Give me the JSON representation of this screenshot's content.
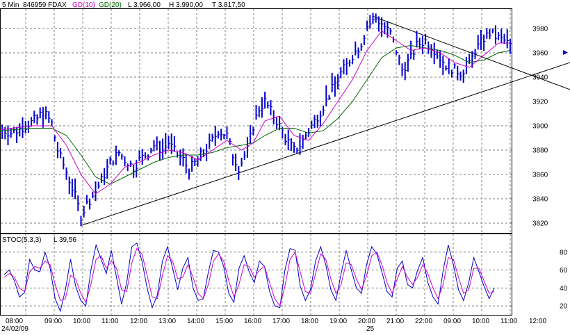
{
  "header": {
    "interval": "5 Min",
    "id": "846959",
    "symbol": "FDAX",
    "ma10_label": "GD(10)",
    "ma20_label": "GD(20)",
    "low": "L  3.966,00",
    "high": "H  3.990,00",
    "last": "T  3.817,50"
  },
  "stoch_header": {
    "label": "STOC(5,3,3)",
    "value": "L  39,56"
  },
  "date_labels": {
    "start": "24/02/09",
    "next_day": "25"
  },
  "colors": {
    "price_bars": "#0000cc",
    "ma10": "#cc00cc",
    "ma20": "#006600",
    "grid": "#7f7f7f",
    "trendlines": "#000000",
    "stoch_k": "#0000cc",
    "stoch_d": "#cc00cc",
    "marker": "#0000cc"
  },
  "chart_data": [
    {
      "type": "ohlc",
      "title": "",
      "price_scale": {
        "ylim": [
          3812,
          3996
        ],
        "ticks": [
          3820,
          3840,
          3860,
          3880,
          3900,
          3920,
          3940,
          3960,
          3980
        ]
      },
      "time_labels": [
        "08:00",
        "09:00",
        "10:00",
        "11:00",
        "12:00",
        "13:00",
        "14:00",
        "15:00",
        "16:00",
        "17:00",
        "18:00",
        "19:00",
        "20:00",
        "21:00",
        "22:00",
        "09:00",
        "10:00",
        "11:00",
        "12:00"
      ],
      "price_path": [
        [
          0,
          3897
        ],
        [
          3,
          3894
        ],
        [
          8,
          3900
        ],
        [
          12,
          3906
        ],
        [
          14,
          3912
        ],
        [
          17,
          3902
        ],
        [
          19,
          3880
        ],
        [
          22,
          3862
        ],
        [
          25,
          3842
        ],
        [
          27,
          3826
        ],
        [
          29,
          3836
        ],
        [
          32,
          3846
        ],
        [
          35,
          3860
        ],
        [
          37,
          3870
        ],
        [
          40,
          3878
        ],
        [
          42,
          3872
        ],
        [
          45,
          3866
        ],
        [
          47,
          3872
        ],
        [
          50,
          3878
        ],
        [
          52,
          3884
        ],
        [
          55,
          3880
        ],
        [
          57,
          3886
        ],
        [
          60,
          3876
        ],
        [
          62,
          3872
        ],
        [
          64,
          3864
        ],
        [
          67,
          3872
        ],
        [
          69,
          3878
        ],
        [
          72,
          3888
        ],
        [
          74,
          3896
        ],
        [
          77,
          3892
        ],
        [
          79,
          3876
        ],
        [
          81,
          3866
        ],
        [
          84,
          3880
        ],
        [
          86,
          3900
        ],
        [
          88,
          3914
        ],
        [
          90,
          3920
        ],
        [
          92,
          3912
        ],
        [
          95,
          3900
        ],
        [
          97,
          3890
        ],
        [
          100,
          3880
        ],
        [
          102,
          3884
        ],
        [
          105,
          3896
        ],
        [
          108,
          3908
        ],
        [
          110,
          3916
        ],
        [
          113,
          3930
        ],
        [
          115,
          3940
        ],
        [
          118,
          3950
        ],
        [
          120,
          3958
        ],
        [
          123,
          3968
        ],
        [
          125,
          3982
        ],
        [
          128,
          3988
        ],
        [
          130,
          3984
        ],
        [
          133,
          3976
        ],
        [
          135,
          3962
        ],
        [
          137,
          3946
        ],
        [
          140,
          3956
        ],
        [
          142,
          3966
        ],
        [
          145,
          3970
        ],
        [
          147,
          3966
        ],
        [
          150,
          3956
        ],
        [
          152,
          3950
        ],
        [
          155,
          3946
        ],
        [
          157,
          3944
        ],
        [
          160,
          3950
        ],
        [
          162,
          3962
        ],
        [
          165,
          3972
        ],
        [
          167,
          3976
        ],
        [
          170,
          3972
        ],
        [
          172,
          3970
        ],
        [
          174,
          3966
        ]
      ],
      "ma10_path": [
        [
          0,
          3897
        ],
        [
          10,
          3900
        ],
        [
          17,
          3900
        ],
        [
          22,
          3884
        ],
        [
          27,
          3860
        ],
        [
          32,
          3844
        ],
        [
          37,
          3852
        ],
        [
          42,
          3866
        ],
        [
          47,
          3870
        ],
        [
          52,
          3876
        ],
        [
          57,
          3880
        ],
        [
          62,
          3878
        ],
        [
          67,
          3872
        ],
        [
          72,
          3880
        ],
        [
          77,
          3888
        ],
        [
          82,
          3880
        ],
        [
          86,
          3886
        ],
        [
          90,
          3904
        ],
        [
          95,
          3908
        ],
        [
          100,
          3892
        ],
        [
          105,
          3888
        ],
        [
          110,
          3902
        ],
        [
          115,
          3920
        ],
        [
          120,
          3938
        ],
        [
          125,
          3962
        ],
        [
          130,
          3978
        ],
        [
          135,
          3970
        ],
        [
          140,
          3962
        ],
        [
          145,
          3964
        ],
        [
          150,
          3960
        ],
        [
          155,
          3952
        ],
        [
          160,
          3948
        ],
        [
          165,
          3958
        ],
        [
          170,
          3968
        ],
        [
          174,
          3968
        ]
      ],
      "ma20_path": [
        [
          0,
          3896
        ],
        [
          10,
          3898
        ],
        [
          17,
          3898
        ],
        [
          22,
          3892
        ],
        [
          27,
          3876
        ],
        [
          32,
          3858
        ],
        [
          37,
          3852
        ],
        [
          42,
          3858
        ],
        [
          47,
          3864
        ],
        [
          52,
          3870
        ],
        [
          57,
          3874
        ],
        [
          62,
          3876
        ],
        [
          67,
          3876
        ],
        [
          72,
          3878
        ],
        [
          77,
          3882
        ],
        [
          82,
          3884
        ],
        [
          86,
          3886
        ],
        [
          90,
          3892
        ],
        [
          95,
          3898
        ],
        [
          100,
          3898
        ],
        [
          105,
          3894
        ],
        [
          110,
          3896
        ],
        [
          115,
          3906
        ],
        [
          120,
          3920
        ],
        [
          125,
          3938
        ],
        [
          130,
          3956
        ],
        [
          135,
          3964
        ],
        [
          140,
          3966
        ],
        [
          145,
          3964
        ],
        [
          150,
          3962
        ],
        [
          155,
          3958
        ],
        [
          160,
          3952
        ],
        [
          165,
          3954
        ],
        [
          170,
          3960
        ],
        [
          174,
          3962
        ]
      ],
      "trendlines": [
        {
          "from": [
            27,
            3818
          ],
          "to": [
            192,
            3950
          ]
        },
        {
          "from": [
            127,
            3990
          ],
          "to": [
            192,
            3932
          ]
        }
      ],
      "last_marker": 3958
    },
    {
      "type": "line",
      "title": "",
      "ylim": [
        10,
        100
      ],
      "ticks": [
        20,
        40,
        60,
        80
      ],
      "series": [
        {
          "name": "",
          "values": [
            55,
            60,
            48,
            30,
            35,
            72,
            60,
            58,
            80,
            62,
            28,
            14,
            38,
            72,
            42,
            26,
            20,
            60,
            88,
            72,
            56,
            82,
            52,
            22,
            46,
            86,
            90,
            70,
            40,
            18,
            32,
            70,
            86,
            62,
            38,
            62,
            74,
            40,
            26,
            28,
            58,
            82,
            80,
            64,
            34,
            24,
            62,
            76,
            58,
            46,
            70,
            64,
            36,
            20,
            18,
            60,
            84,
            82,
            42,
            26,
            38,
            70,
            86,
            66,
            38,
            26,
            56,
            82,
            60,
            40,
            34,
            66,
            86,
            78,
            58,
            36,
            30,
            62,
            70,
            44,
            40,
            60,
            74,
            46,
            30,
            22,
            60,
            88,
            66,
            38,
            26,
            46,
            74,
            58,
            42,
            28,
            40
          ]
        },
        {
          "name": "",
          "values": [
            52,
            56,
            52,
            40,
            36,
            58,
            64,
            62,
            70,
            66,
            44,
            26,
            28,
            54,
            50,
            34,
            24,
            44,
            72,
            76,
            62,
            70,
            62,
            38,
            36,
            68,
            84,
            78,
            54,
            30,
            28,
            54,
            76,
            70,
            50,
            52,
            66,
            52,
            34,
            28,
            44,
            70,
            78,
            70,
            48,
            30,
            44,
            66,
            64,
            52,
            60,
            64,
            46,
            28,
            20,
            42,
            72,
            80,
            58,
            36,
            34,
            56,
            78,
            72,
            50,
            34,
            44,
            68,
            66,
            50,
            38,
            54,
            76,
            80,
            66,
            46,
            34,
            50,
            64,
            52,
            44,
            52,
            66,
            56,
            40,
            28,
            44,
            74,
            72,
            52,
            34,
            38,
            62,
            62,
            48,
            34,
            36
          ]
        }
      ]
    }
  ]
}
